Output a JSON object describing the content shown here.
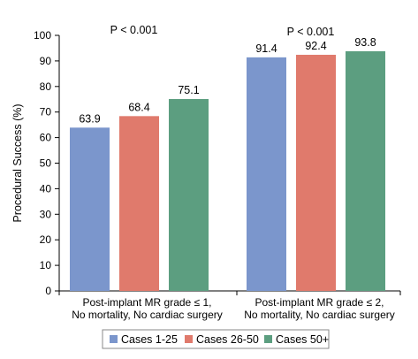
{
  "chart_data": {
    "type": "bar",
    "ylabel": "Procedural Success (%)",
    "ylim": [
      0,
      100
    ],
    "yticks": [
      0,
      10,
      20,
      30,
      40,
      50,
      60,
      70,
      80,
      90,
      100
    ],
    "groups": [
      {
        "label_lines": [
          "Post-implant MR grade ≤ 1,",
          "No mortality, No cardiac surgery"
        ],
        "annotation": "P < 0.001"
      },
      {
        "label_lines": [
          "Post-implant MR grade ≤ 2,",
          "No mortality, No cardiac surgery"
        ],
        "annotation": "P < 0.001"
      }
    ],
    "series": [
      {
        "name": "Cases 1-25",
        "color": "#7b96cc",
        "values": [
          63.9,
          91.4
        ]
      },
      {
        "name": "Cases 26-50",
        "color": "#e07a6c",
        "values": [
          68.4,
          92.4
        ]
      },
      {
        "name": "Cases 50+",
        "color": "#5c9e80",
        "values": [
          75.1,
          93.8
        ]
      }
    ],
    "legend_position": "bottom"
  }
}
